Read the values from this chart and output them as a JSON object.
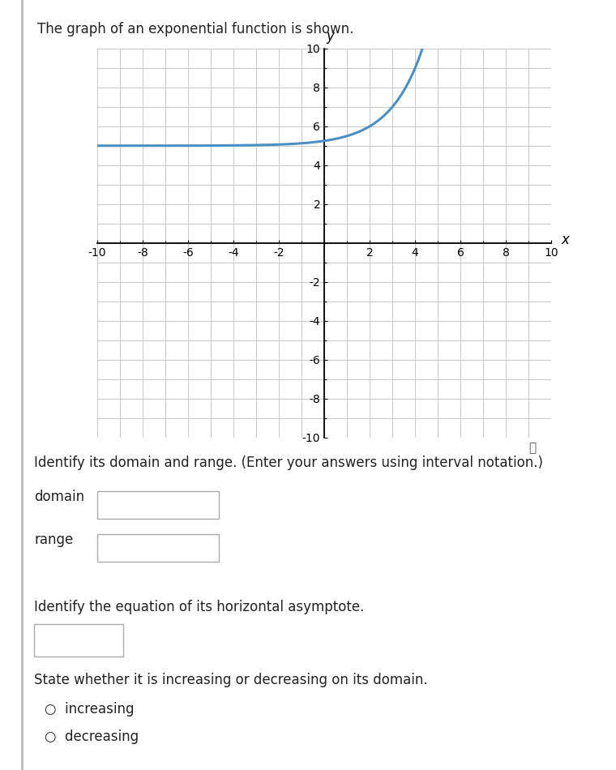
{
  "title_text": "The graph of an exponential function is shown.",
  "graph_xlim": [
    -10,
    10
  ],
  "graph_ylim": [
    -10,
    10
  ],
  "graph_xticks": [
    -10,
    -8,
    -6,
    -4,
    -2,
    2,
    4,
    6,
    8,
    10
  ],
  "graph_yticks": [
    -10,
    -8,
    -6,
    -4,
    -2,
    2,
    4,
    6,
    8,
    10
  ],
  "curve_color": "#4a90c4",
  "curve_linewidth": 2.2,
  "func_a": 1,
  "func_base": 2,
  "func_shift": -2,
  "func_vert": 5,
  "axis_color": "#000000",
  "grid_color": "#c8c8c8",
  "grid_linewidth": 0.7,
  "bg_color": "#ffffff",
  "label_fontsize": 12,
  "tick_fontsize": 10,
  "question1": "Identify its domain and range. (Enter your answers using interval notation.)",
  "domain_label": "domain",
  "range_label": "range",
  "question2": "Identify the equation of its horizontal asymptote.",
  "question3": "State whether it is increasing or decreasing on its domain.",
  "radio1": "increasing",
  "radio2": "decreasing",
  "text_fontsize": 12,
  "info_symbol": "ⓘ",
  "outer_bg": "#ffffff",
  "border_color": "#cccccc",
  "left_border_color": "#bbbbbb"
}
